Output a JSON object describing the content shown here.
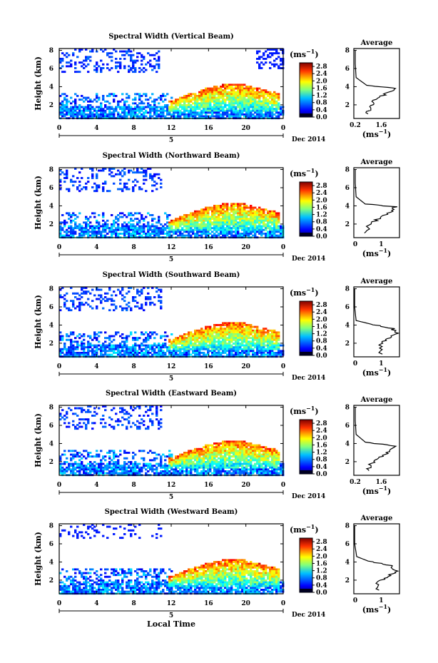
{
  "figure": {
    "bottom_xlabel": "Local Time",
    "date_label": "Dec 2014",
    "xlabel_day": "5",
    "colorbar_unit": "(ms",
    "colorbar_unit_sup": "−1",
    "colorbar_unit_close": ")",
    "avg_xunit": "(ms",
    "avg_xunit_sup": "−1",
    "avg_xunit_close": ")",
    "ylabel": "Height (km)",
    "avg_title": "Average"
  },
  "chart_data": [
    {
      "type": "heatmap",
      "title": "Spectral Width (Vertical Beam)",
      "xlabel": "Local Time",
      "ylabel": "Height (km)",
      "x_ticks": [
        "0",
        "4",
        "8",
        "12",
        "16",
        "20",
        "0"
      ],
      "y_ticks": [
        "2",
        "4",
        "6",
        "8"
      ],
      "xlim": [
        0,
        24
      ],
      "ylim": [
        0.5,
        8.2
      ],
      "colorbar": {
        "ticks": [
          "0.0",
          "0.4",
          "0.8",
          "1.2",
          "1.6",
          "2.0",
          "2.4",
          "2.8"
        ],
        "range": [
          0,
          3.0
        ]
      },
      "average_profile": {
        "title": "Average",
        "xlim": [
          0,
          1.6
        ],
        "x_ticks": [
          "0.2",
          "1.6"
        ],
        "y_ticks": [
          "2",
          "4",
          "6",
          "8"
        ],
        "points": [
          [
            0.5,
            1.0
          ],
          [
            0.55,
            1.8
          ],
          [
            0.75,
            2.5
          ],
          [
            1.1,
            3.2
          ],
          [
            1.55,
            3.8
          ],
          [
            0.45,
            4.15
          ],
          [
            0.08,
            5.0
          ],
          [
            0.05,
            6.5
          ],
          [
            0.05,
            8.0
          ]
        ]
      }
    },
    {
      "type": "heatmap",
      "title": "Spectral Width (Northward Beam)",
      "xlabel": "Local Time",
      "ylabel": "Height (km)",
      "x_ticks": [
        "0",
        "4",
        "8",
        "12",
        "16",
        "20",
        "0"
      ],
      "y_ticks": [
        "2",
        "4",
        "6",
        "8"
      ],
      "xlim": [
        0,
        24
      ],
      "ylim": [
        0.5,
        8.2
      ],
      "colorbar": {
        "ticks": [
          "0.0",
          "0.4",
          "0.8",
          "1.2",
          "1.6",
          "2.0",
          "2.4",
          "2.8"
        ],
        "range": [
          0,
          3.0
        ]
      },
      "average_profile": {
        "title": "Average",
        "xlim": [
          0,
          1.6
        ],
        "x_ticks": [
          "0",
          "1"
        ],
        "y_ticks": [
          "2",
          "4",
          "6",
          "8"
        ],
        "points": [
          [
            0.4,
            1.0
          ],
          [
            0.55,
            1.9
          ],
          [
            0.85,
            2.6
          ],
          [
            1.3,
            3.3
          ],
          [
            1.45,
            3.9
          ],
          [
            0.4,
            4.2
          ],
          [
            0.08,
            5.0
          ],
          [
            0.05,
            6.5
          ],
          [
            0.05,
            8.0
          ]
        ]
      }
    },
    {
      "type": "heatmap",
      "title": "Spectral Width (Southward Beam)",
      "xlabel": "Local Time",
      "ylabel": "Height (km)",
      "x_ticks": [
        "0",
        "4",
        "8",
        "12",
        "16",
        "20",
        "0"
      ],
      "y_ticks": [
        "2",
        "4",
        "6",
        "8"
      ],
      "xlim": [
        0,
        24
      ],
      "ylim": [
        0.5,
        8.2
      ],
      "colorbar": {
        "ticks": [
          "0.0",
          "0.4",
          "0.8",
          "1.2",
          "1.6",
          "2.0",
          "2.4",
          "2.8"
        ],
        "range": [
          0,
          3.0
        ]
      },
      "average_profile": {
        "title": "Average",
        "xlim": [
          0,
          1.6
        ],
        "x_ticks": [
          "0",
          "1"
        ],
        "y_ticks": [
          "2",
          "4",
          "6",
          "8"
        ],
        "points": [
          [
            0.95,
            0.8
          ],
          [
            0.95,
            1.8
          ],
          [
            1.1,
            2.4
          ],
          [
            1.5,
            3.0
          ],
          [
            1.35,
            3.6
          ],
          [
            0.6,
            4.1
          ],
          [
            0.08,
            4.5
          ],
          [
            0.03,
            6.0
          ],
          [
            0.03,
            8.0
          ]
        ]
      }
    },
    {
      "type": "heatmap",
      "title": "Spectral Width (Eastward Beam)",
      "xlabel": "Local Time",
      "ylabel": "Height (km)",
      "x_ticks": [
        "0",
        "4",
        "8",
        "12",
        "16",
        "20",
        "0"
      ],
      "y_ticks": [
        "2",
        "4",
        "6",
        "8"
      ],
      "xlim": [
        0,
        24
      ],
      "ylim": [
        0.5,
        8.2
      ],
      "colorbar": {
        "ticks": [
          "0.0",
          "0.4",
          "0.8",
          "1.2",
          "1.6",
          "2.0",
          "2.4",
          "2.8"
        ],
        "range": [
          0,
          3.0
        ]
      },
      "average_profile": {
        "title": "Average",
        "xlim": [
          0,
          1.6
        ],
        "x_ticks": [
          "0.2",
          "1.6"
        ],
        "y_ticks": [
          "2",
          "4",
          "6",
          "8"
        ],
        "points": [
          [
            0.45,
            1.0
          ],
          [
            0.6,
            1.7
          ],
          [
            0.9,
            2.4
          ],
          [
            1.2,
            3.0
          ],
          [
            1.5,
            3.7
          ],
          [
            0.4,
            4.15
          ],
          [
            0.08,
            5.0
          ],
          [
            0.05,
            6.5
          ],
          [
            0.05,
            8.0
          ]
        ]
      }
    },
    {
      "type": "heatmap",
      "title": "Spectral Width (Westward Beam)",
      "xlabel": "Local Time",
      "ylabel": "Height (km)",
      "x_ticks": [
        "0",
        "4",
        "8",
        "12",
        "16",
        "20",
        "0"
      ],
      "y_ticks": [
        "2",
        "4",
        "6",
        "8"
      ],
      "xlim": [
        0,
        24
      ],
      "ylim": [
        0.5,
        8.2
      ],
      "colorbar": {
        "ticks": [
          "0.0",
          "0.4",
          "0.8",
          "1.2",
          "1.6",
          "2.0",
          "2.4",
          "2.8"
        ],
        "range": [
          0,
          3.0
        ]
      },
      "average_profile": {
        "title": "Average",
        "xlim": [
          0,
          1.6
        ],
        "x_ticks": [
          "0",
          "1"
        ],
        "y_ticks": [
          "2",
          "4",
          "6",
          "8"
        ],
        "points": [
          [
            0.8,
            0.9
          ],
          [
            0.85,
            1.8
          ],
          [
            1.15,
            2.4
          ],
          [
            1.5,
            3.0
          ],
          [
            1.3,
            3.6
          ],
          [
            0.5,
            4.1
          ],
          [
            0.1,
            4.6
          ],
          [
            0.03,
            6.0
          ],
          [
            0.03,
            8.0
          ]
        ]
      }
    }
  ]
}
